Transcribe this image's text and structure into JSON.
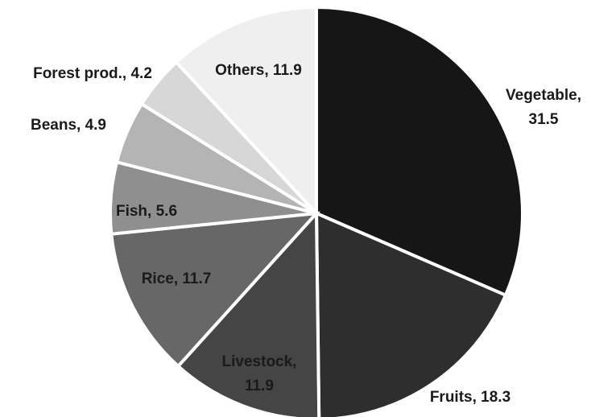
{
  "chart_data": {
    "type": "pie",
    "title": "",
    "slices": [
      {
        "name": "Vegetable",
        "value": 31.5,
        "label_lines": [
          "Vegetable,",
          "31.5"
        ],
        "color": "#161616",
        "label_color": "#1a1a1a"
      },
      {
        "name": "Fruits",
        "value": 18.3,
        "label_lines": [
          "Fruits, 18.3"
        ],
        "color": "#2e2e2e",
        "label_color": "#1a1a1a"
      },
      {
        "name": "Livestock",
        "value": 11.9,
        "label_lines": [
          "Livestock,",
          "11.9"
        ],
        "color": "#454545",
        "label_color": "#1a1a1a"
      },
      {
        "name": "Rice",
        "value": 11.7,
        "label_lines": [
          "Rice, 11.7"
        ],
        "color": "#676767",
        "label_color": "#1a1a1a"
      },
      {
        "name": "Fish",
        "value": 5.6,
        "label_lines": [
          "Fish, 5.6"
        ],
        "color": "#8f8f8f",
        "label_color": "#1a1a1a"
      },
      {
        "name": "Beans",
        "value": 4.9,
        "label_lines": [
          "Beans, 4.9"
        ],
        "color": "#b4b4b4",
        "label_color": "#1a1a1a"
      },
      {
        "name": "Forest prod.",
        "value": 4.2,
        "label_lines": [
          "Forest prod., 4.2"
        ],
        "color": "#d7d7d7",
        "label_color": "#1a1a1a"
      },
      {
        "name": "Others",
        "value": 11.9,
        "label_lines": [
          "Others, 11.9"
        ],
        "color": "#efefef",
        "label_color": "#1a1a1a"
      }
    ],
    "start_position": "top",
    "direction": "clockwise",
    "slice_border_color": "#ffffff"
  }
}
